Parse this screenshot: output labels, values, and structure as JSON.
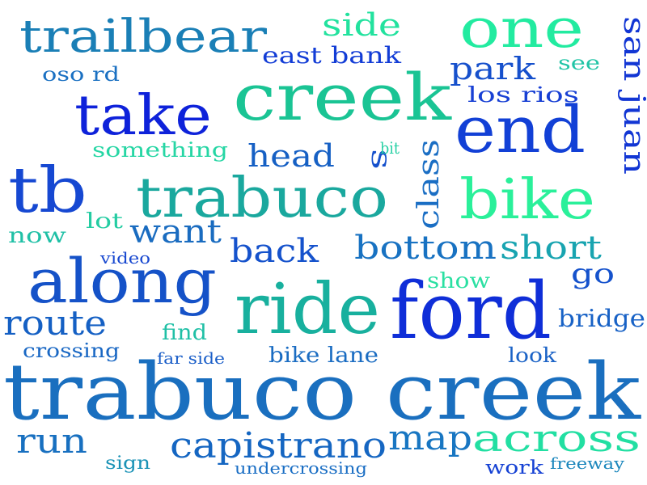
{
  "words": [
    {
      "text": "trabuco creek",
      "color": "#1a6fbf"
    },
    {
      "text": "creek",
      "color": "#1ac494"
    },
    {
      "text": "ford",
      "color": "#0f2ed8"
    },
    {
      "text": "ride",
      "color": "#18b09e"
    },
    {
      "text": "trabuco",
      "color": "#1aa89e"
    },
    {
      "text": "along",
      "color": "#1552c8"
    },
    {
      "text": "end",
      "color": "#1240d6"
    },
    {
      "text": "trailbear",
      "color": "#1a7fb6"
    },
    {
      "text": "take",
      "color": "#0e22da"
    },
    {
      "text": "one",
      "color": "#22eba0"
    },
    {
      "text": "bike",
      "color": "#2af09a"
    },
    {
      "text": "tb",
      "color": "#1648d2"
    },
    {
      "text": "capistrano",
      "color": "#1566c2"
    },
    {
      "text": "across",
      "color": "#22dfa2"
    },
    {
      "text": "route",
      "color": "#1560c4"
    },
    {
      "text": "run",
      "color": "#1870c0"
    },
    {
      "text": "map",
      "color": "#1876c2"
    },
    {
      "text": "bottom",
      "color": "#1872c2"
    },
    {
      "text": "short",
      "color": "#18a4b0"
    },
    {
      "text": "back",
      "color": "#1552cc"
    },
    {
      "text": "want",
      "color": "#1a6cc0"
    },
    {
      "text": "head",
      "color": "#1660c4"
    },
    {
      "text": "park",
      "color": "#1650cc"
    },
    {
      "text": "side",
      "color": "#22e29e"
    },
    {
      "text": "san juan",
      "color": "#1236d4"
    },
    {
      "text": "class",
      "color": "#1a6ec4"
    },
    {
      "text": "east bank",
      "color": "#123cd6"
    },
    {
      "text": "go",
      "color": "#1552cc"
    },
    {
      "text": "bridge",
      "color": "#1862c6"
    },
    {
      "text": "s",
      "color": "#1550cc"
    },
    {
      "text": "something",
      "color": "#26d6a4"
    },
    {
      "text": "los rios",
      "color": "#1840d4"
    },
    {
      "text": "bike lane",
      "color": "#1a6cc2"
    },
    {
      "text": "crossing",
      "color": "#1a68c4"
    },
    {
      "text": "look",
      "color": "#1a62c6"
    },
    {
      "text": "find",
      "color": "#20c0a6"
    },
    {
      "text": "now",
      "color": "#20c0a6"
    },
    {
      "text": "lot",
      "color": "#24cca2"
    },
    {
      "text": "show",
      "color": "#2ae0a2"
    },
    {
      "text": "see",
      "color": "#20c4a6"
    },
    {
      "text": "work",
      "color": "#1642d4"
    },
    {
      "text": "undercrossing",
      "color": "#1a6ec4"
    },
    {
      "text": "oso rd",
      "color": "#1a70c2"
    },
    {
      "text": "far side",
      "color": "#1a5ec8"
    },
    {
      "text": "freeway",
      "color": "#1a86bc"
    },
    {
      "text": "sign",
      "color": "#1a92b6"
    },
    {
      "text": "bit",
      "color": "#26d0a4"
    },
    {
      "text": "video",
      "color": "#1848d0"
    }
  ]
}
